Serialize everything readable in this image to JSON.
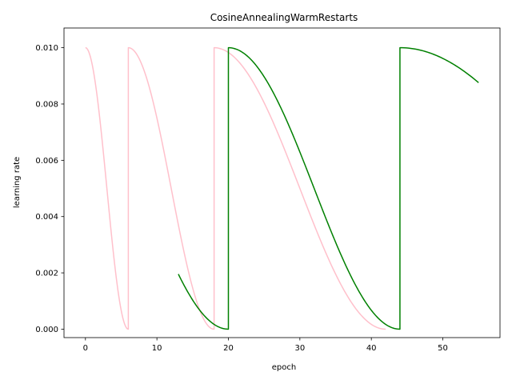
{
  "chart_data": {
    "type": "line",
    "title": "CosineAnnealingWarmRestarts",
    "xlabel": "epoch",
    "ylabel": "learning rate",
    "xlim": [
      -3,
      58
    ],
    "ylim": [
      -0.0003,
      0.0107
    ],
    "xticks": [
      0,
      10,
      20,
      30,
      40,
      50
    ],
    "yticks": [
      0.0,
      0.002,
      0.004,
      0.006,
      0.008,
      0.01
    ],
    "ytick_labels": [
      "0.000",
      "0.002",
      "0.004",
      "0.006",
      "0.008",
      "0.010"
    ],
    "grid": false,
    "legend": null,
    "series": [
      {
        "color": "#ffc0cb",
        "schedule": {
          "eta_max": 0.01,
          "eta_min": 0.0,
          "segments": [
            [
              0,
              6
            ],
            [
              6,
              18
            ],
            [
              18,
              42
            ]
          ]
        }
      },
      {
        "color": "#008000",
        "schedule": {
          "eta_max": 0.01,
          "eta_min": 0.0,
          "segments": [
            [
              -4,
              20
            ],
            [
              20,
              44
            ],
            [
              44,
              92
            ]
          ],
          "start": 13,
          "end": 55
        }
      }
    ]
  }
}
